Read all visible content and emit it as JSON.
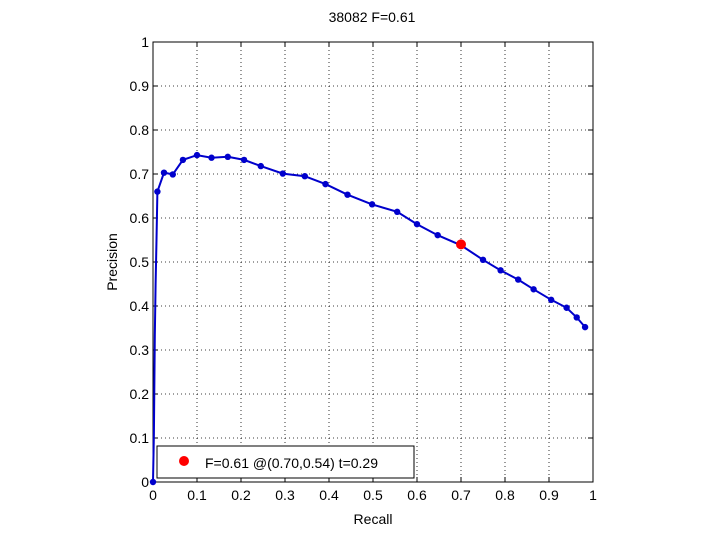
{
  "chart_data": {
    "type": "line",
    "title": "38082 F=0.61",
    "xlabel": "Recall",
    "ylabel": "Precision",
    "xlim": [
      0,
      1
    ],
    "ylim": [
      0,
      1
    ],
    "grid": true,
    "grid_style": "dotted",
    "xticks": [
      "0",
      "0.1",
      "0.2",
      "0.3",
      "0.4",
      "0.5",
      "0.6",
      "0.7",
      "0.8",
      "0.9",
      "1"
    ],
    "yticks": [
      "0",
      "0.1",
      "0.2",
      "0.3",
      "0.4",
      "0.5",
      "0.6",
      "0.7",
      "0.8",
      "0.9",
      "1"
    ],
    "series": [
      {
        "color": "#0000cc",
        "curve": {
          "x": [
            0,
            0.002,
            0.004,
            0.006,
            0.008,
            0.01
          ],
          "y": [
            0,
            0.11,
            0.33,
            0.45,
            0.55,
            0.66
          ]
        },
        "marker_points": [
          {
            "x": 0.0,
            "y": 0.0
          },
          {
            "x": 0.01,
            "y": 0.66
          },
          {
            "x": 0.025,
            "y": 0.703
          },
          {
            "x": 0.045,
            "y": 0.699
          },
          {
            "x": 0.068,
            "y": 0.732
          },
          {
            "x": 0.1,
            "y": 0.743
          },
          {
            "x": 0.133,
            "y": 0.737
          },
          {
            "x": 0.17,
            "y": 0.739
          },
          {
            "x": 0.207,
            "y": 0.732
          },
          {
            "x": 0.245,
            "y": 0.718
          },
          {
            "x": 0.295,
            "y": 0.701
          },
          {
            "x": 0.345,
            "y": 0.695
          },
          {
            "x": 0.392,
            "y": 0.677
          },
          {
            "x": 0.442,
            "y": 0.653
          },
          {
            "x": 0.498,
            "y": 0.631
          },
          {
            "x": 0.555,
            "y": 0.614
          },
          {
            "x": 0.6,
            "y": 0.586
          },
          {
            "x": 0.647,
            "y": 0.561
          },
          {
            "x": 0.7,
            "y": 0.538
          },
          {
            "x": 0.75,
            "y": 0.505
          },
          {
            "x": 0.79,
            "y": 0.481
          },
          {
            "x": 0.83,
            "y": 0.46
          },
          {
            "x": 0.865,
            "y": 0.438
          },
          {
            "x": 0.905,
            "y": 0.414
          },
          {
            "x": 0.94,
            "y": 0.396
          },
          {
            "x": 0.963,
            "y": 0.374
          },
          {
            "x": 0.982,
            "y": 0.352
          }
        ]
      }
    ],
    "highlight_point": {
      "x": 0.7,
      "y": 0.54,
      "color": "#ff0000"
    },
    "legend": {
      "placement": "bottom-left",
      "text": "F=0.61 @(0.70,0.54) t=0.29",
      "marker_color": "#ff0000"
    }
  }
}
